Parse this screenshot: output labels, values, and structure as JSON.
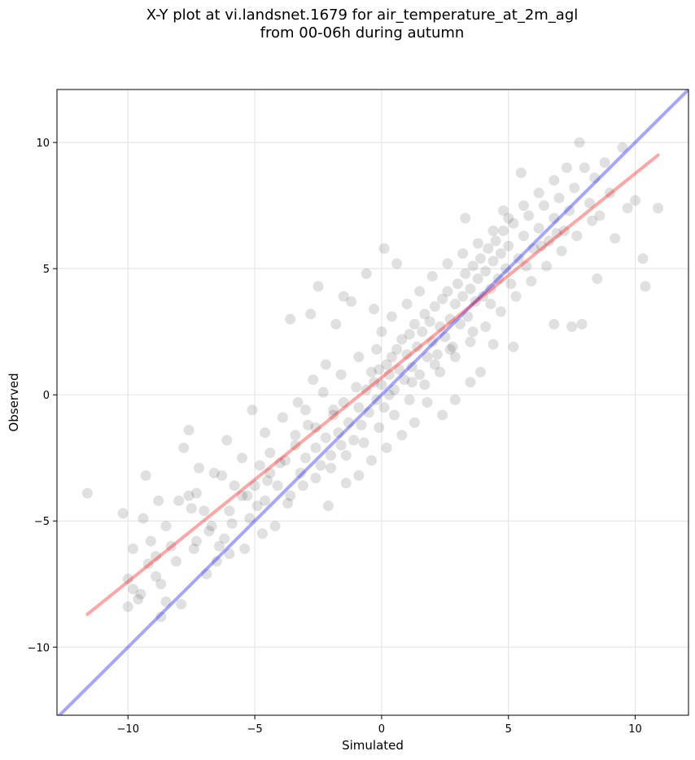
{
  "chart_data": {
    "type": "scatter",
    "title_line1": "X-Y plot at vi.landsnet.1679 for air_temperature_at_2m_agl",
    "title_line2": "from 00-06h during autumn",
    "xlabel": "Simulated",
    "ylabel": "Observed",
    "xlim": [
      -12.8,
      12.1
    ],
    "ylim": [
      -12.7,
      12.1
    ],
    "xticks": [
      -10,
      -5,
      0,
      5,
      10
    ],
    "yticks": [
      -10,
      -5,
      0,
      5,
      10
    ],
    "xtick_labels": [
      "−10",
      "−5",
      "0",
      "5",
      "10"
    ],
    "ytick_labels": [
      "−10",
      "−5",
      "0",
      "5",
      "10"
    ],
    "grid": true,
    "point_color": "#000000",
    "point_alpha": 0.12,
    "one_to_one_line": {
      "x": [
        -12.8,
        12.1
      ],
      "y": [
        -12.8,
        12.1
      ],
      "color": "#0000ff",
      "alpha": 0.35
    },
    "fit_line": {
      "x": [
        -11.6,
        10.9
      ],
      "y": [
        -8.7,
        9.5
      ],
      "color": "#ff0000",
      "alpha": 0.35
    },
    "points": [
      [
        -11.6,
        -3.9
      ],
      [
        -10.2,
        -4.7
      ],
      [
        -9.3,
        -3.2
      ],
      [
        -10.0,
        -8.4
      ],
      [
        -9.8,
        -7.7
      ],
      [
        -9.5,
        -7.9
      ],
      [
        -9.2,
        -6.7
      ],
      [
        -8.9,
        -6.4
      ],
      [
        -8.7,
        -7.5
      ],
      [
        -8.5,
        -8.2
      ],
      [
        -8.7,
        -8.8
      ],
      [
        -9.1,
        -5.8
      ],
      [
        -8.3,
        -6.0
      ],
      [
        -8.5,
        -5.2
      ],
      [
        -7.6,
        -4.0
      ],
      [
        -7.5,
        -4.5
      ],
      [
        -7.8,
        -2.1
      ],
      [
        -7.6,
        -1.4
      ],
      [
        -7.3,
        -3.9
      ],
      [
        -7.0,
        -4.6
      ],
      [
        -6.8,
        -5.4
      ],
      [
        -6.5,
        -6.6
      ],
      [
        -6.2,
        -5.7
      ],
      [
        -6.0,
        -6.3
      ],
      [
        -6.3,
        -3.2
      ],
      [
        -5.8,
        -3.6
      ],
      [
        -5.5,
        -4.0
      ],
      [
        -5.2,
        -4.9
      ],
      [
        -5.0,
        -3.6
      ],
      [
        -4.8,
        -2.8
      ],
      [
        -4.6,
        -4.2
      ],
      [
        -4.4,
        -3.1
      ],
      [
        -4.7,
        -5.5
      ],
      [
        -5.4,
        -6.1
      ],
      [
        -5.1,
        -0.6
      ],
      [
        -4.4,
        -2.3
      ],
      [
        -4.1,
        -3.6
      ],
      [
        -3.8,
        -2.6
      ],
      [
        -3.6,
        -4.0
      ],
      [
        -3.4,
        -1.6
      ],
      [
        -3.2,
        -3.1
      ],
      [
        -3.0,
        -2.5
      ],
      [
        -2.9,
        -1.2
      ],
      [
        -2.6,
        -2.1
      ],
      [
        -2.4,
        -2.8
      ],
      [
        -2.2,
        -1.7
      ],
      [
        -2.0,
        -2.4
      ],
      [
        -1.9,
        -0.8
      ],
      [
        -1.7,
        -1.5
      ],
      [
        -1.6,
        -2.0
      ],
      [
        -1.5,
        -0.3
      ],
      [
        -1.3,
        -1.1
      ],
      [
        -1.1,
        -1.8
      ],
      [
        -0.9,
        -0.5
      ],
      [
        -0.8,
        -1.2
      ],
      [
        -0.6,
        0.2
      ],
      [
        -0.5,
        -0.7
      ],
      [
        -0.3,
        0.5
      ],
      [
        -0.2,
        -0.2
      ],
      [
        -0.1,
        1.0
      ],
      [
        0.0,
        0.4
      ],
      [
        0.1,
        -0.5
      ],
      [
        0.2,
        1.2
      ],
      [
        0.3,
        0.8
      ],
      [
        0.4,
        1.5
      ],
      [
        0.5,
        0.2
      ],
      [
        0.6,
        1.8
      ],
      [
        0.7,
        1.0
      ],
      [
        0.8,
        2.2
      ],
      [
        0.9,
        0.6
      ],
      [
        1.0,
        1.6
      ],
      [
        1.1,
        2.4
      ],
      [
        1.2,
        1.1
      ],
      [
        1.3,
        2.8
      ],
      [
        1.4,
        1.9
      ],
      [
        1.5,
        0.8
      ],
      [
        1.6,
        2.5
      ],
      [
        1.7,
        3.2
      ],
      [
        1.8,
        1.5
      ],
      [
        1.9,
        2.9
      ],
      [
        2.0,
        2.1
      ],
      [
        2.1,
        3.5
      ],
      [
        2.2,
        1.6
      ],
      [
        2.3,
        2.7
      ],
      [
        2.4,
        3.8
      ],
      [
        2.5,
        2.3
      ],
      [
        2.6,
        4.1
      ],
      [
        2.7,
        3.0
      ],
      [
        2.8,
        1.9
      ],
      [
        2.9,
        3.6
      ],
      [
        3.0,
        4.4
      ],
      [
        3.1,
        2.8
      ],
      [
        3.2,
        3.9
      ],
      [
        3.3,
        4.8
      ],
      [
        3.4,
        3.1
      ],
      [
        3.5,
        4.2
      ],
      [
        3.6,
        5.1
      ],
      [
        3.7,
        3.7
      ],
      [
        3.8,
        4.6
      ],
      [
        3.9,
        5.4
      ],
      [
        4.0,
        3.9
      ],
      [
        4.1,
        4.9
      ],
      [
        4.2,
        5.8
      ],
      [
        4.3,
        4.2
      ],
      [
        4.4,
        5.3
      ],
      [
        4.5,
        6.1
      ],
      [
        4.6,
        4.6
      ],
      [
        4.7,
        5.6
      ],
      [
        4.8,
        6.5
      ],
      [
        4.9,
        5.0
      ],
      [
        5.0,
        5.9
      ],
      [
        5.2,
        6.8
      ],
      [
        5.4,
        5.4
      ],
      [
        5.6,
        6.3
      ],
      [
        5.8,
        7.1
      ],
      [
        6.0,
        5.8
      ],
      [
        6.2,
        6.6
      ],
      [
        6.4,
        7.5
      ],
      [
        6.6,
        6.1
      ],
      [
        6.8,
        7.0
      ],
      [
        7.0,
        7.8
      ],
      [
        7.2,
        6.5
      ],
      [
        7.4,
        7.3
      ],
      [
        7.6,
        8.2
      ],
      [
        7.8,
        10.0
      ],
      [
        8.0,
        9.0
      ],
      [
        8.2,
        7.6
      ],
      [
        8.4,
        8.6
      ],
      [
        8.6,
        7.1
      ],
      [
        8.8,
        9.2
      ],
      [
        9.0,
        8.0
      ],
      [
        9.2,
        6.2
      ],
      [
        9.5,
        9.8
      ],
      [
        9.7,
        7.4
      ],
      [
        10.0,
        7.7
      ],
      [
        10.3,
        5.4
      ],
      [
        10.4,
        4.3
      ],
      [
        10.9,
        7.4
      ],
      [
        7.5,
        2.7
      ],
      [
        7.9,
        2.8
      ],
      [
        8.5,
        4.6
      ],
      [
        6.8,
        2.8
      ],
      [
        5.2,
        1.9
      ],
      [
        4.4,
        2.0
      ],
      [
        3.9,
        0.9
      ],
      [
        3.5,
        0.5
      ],
      [
        2.9,
        -0.2
      ],
      [
        2.4,
        -0.8
      ],
      [
        1.8,
        -0.3
      ],
      [
        1.3,
        -1.1
      ],
      [
        0.8,
        -1.6
      ],
      [
        0.2,
        -2.1
      ],
      [
        -0.4,
        -2.6
      ],
      [
        -0.9,
        -3.2
      ],
      [
        -1.4,
        -3.5
      ],
      [
        -2.1,
        -4.4
      ],
      [
        -2.8,
        3.2
      ],
      [
        -2.5,
        4.3
      ],
      [
        -3.6,
        3.0
      ],
      [
        -1.8,
        2.8
      ],
      [
        -1.2,
        3.7
      ],
      [
        -0.6,
        4.8
      ],
      [
        0.1,
        5.8
      ],
      [
        0.6,
        5.2
      ],
      [
        -0.3,
        3.4
      ],
      [
        -1.5,
        3.9
      ],
      [
        -2.2,
        1.2
      ],
      [
        -2.7,
        0.6
      ],
      [
        -3.3,
        -0.3
      ],
      [
        -3.9,
        -0.9
      ],
      [
        -4.6,
        -1.5
      ],
      [
        -5.5,
        -2.5
      ],
      [
        -6.1,
        -1.8
      ],
      [
        -6.6,
        -3.1
      ],
      [
        -7.2,
        -2.9
      ],
      [
        -8.0,
        -4.2
      ],
      [
        -8.8,
        -4.2
      ],
      [
        -9.4,
        -4.9
      ],
      [
        -9.8,
        -6.1
      ],
      [
        -10.0,
        -7.3
      ],
      [
        -7.9,
        -8.3
      ],
      [
        -7.4,
        -6.1
      ],
      [
        -6.9,
        -7.1
      ],
      [
        -6.4,
        -6.0
      ],
      [
        -5.9,
        -5.1
      ],
      [
        -4.9,
        -4.4
      ],
      [
        -4.2,
        -5.2
      ],
      [
        -3.7,
        -4.3
      ],
      [
        -3.1,
        -3.6
      ],
      [
        -2.6,
        -3.3
      ],
      [
        -2.0,
        -2.9
      ],
      [
        -1.4,
        -2.4
      ],
      [
        -0.7,
        -1.9
      ],
      [
        -0.1,
        -1.3
      ],
      [
        0.5,
        -0.8
      ],
      [
        1.1,
        -0.2
      ],
      [
        1.7,
        0.4
      ],
      [
        2.3,
        0.9
      ],
      [
        2.9,
        1.5
      ],
      [
        3.5,
        2.1
      ],
      [
        4.1,
        2.7
      ],
      [
        4.7,
        3.3
      ],
      [
        5.3,
        3.9
      ],
      [
        5.9,
        4.5
      ],
      [
        6.5,
        5.1
      ],
      [
        7.1,
        5.7
      ],
      [
        7.7,
        6.3
      ],
      [
        8.3,
        6.9
      ],
      [
        0.0,
        2.5
      ],
      [
        0.4,
        3.1
      ],
      [
        -0.2,
        1.8
      ],
      [
        1.0,
        3.6
      ],
      [
        1.5,
        4.1
      ],
      [
        2.0,
        4.7
      ],
      [
        2.6,
        5.2
      ],
      [
        3.2,
        5.6
      ],
      [
        3.8,
        6.0
      ],
      [
        4.4,
        6.5
      ],
      [
        5.0,
        7.0
      ],
      [
        5.6,
        7.5
      ],
      [
        6.2,
        8.0
      ],
      [
        6.8,
        8.5
      ],
      [
        7.3,
        9.0
      ],
      [
        5.5,
        8.8
      ],
      [
        4.8,
        7.3
      ],
      [
        3.3,
        7.0
      ],
      [
        -0.9,
        1.5
      ],
      [
        -1.6,
        0.8
      ],
      [
        -2.3,
        0.1
      ],
      [
        -3.0,
        -0.6
      ],
      [
        -0.4,
        0.9
      ],
      [
        0.3,
        0.0
      ],
      [
        1.2,
        0.5
      ],
      [
        2.1,
        1.2
      ],
      [
        2.7,
        1.8
      ],
      [
        3.6,
        2.5
      ],
      [
        4.3,
        3.6
      ],
      [
        5.1,
        4.4
      ],
      [
        5.7,
        5.1
      ],
      [
        6.3,
        5.9
      ],
      [
        6.9,
        6.4
      ],
      [
        -1.0,
        0.3
      ],
      [
        -1.9,
        -0.6
      ],
      [
        -2.6,
        -1.3
      ],
      [
        -3.4,
        -2.0
      ],
      [
        -4.0,
        -2.7
      ],
      [
        -4.5,
        -3.4
      ],
      [
        -5.3,
        -4.0
      ],
      [
        -6.0,
        -4.6
      ],
      [
        -6.7,
        -5.2
      ],
      [
        -7.3,
        -5.8
      ],
      [
        -8.1,
        -6.6
      ],
      [
        -8.9,
        -7.2
      ],
      [
        -9.6,
        -8.1
      ]
    ]
  }
}
